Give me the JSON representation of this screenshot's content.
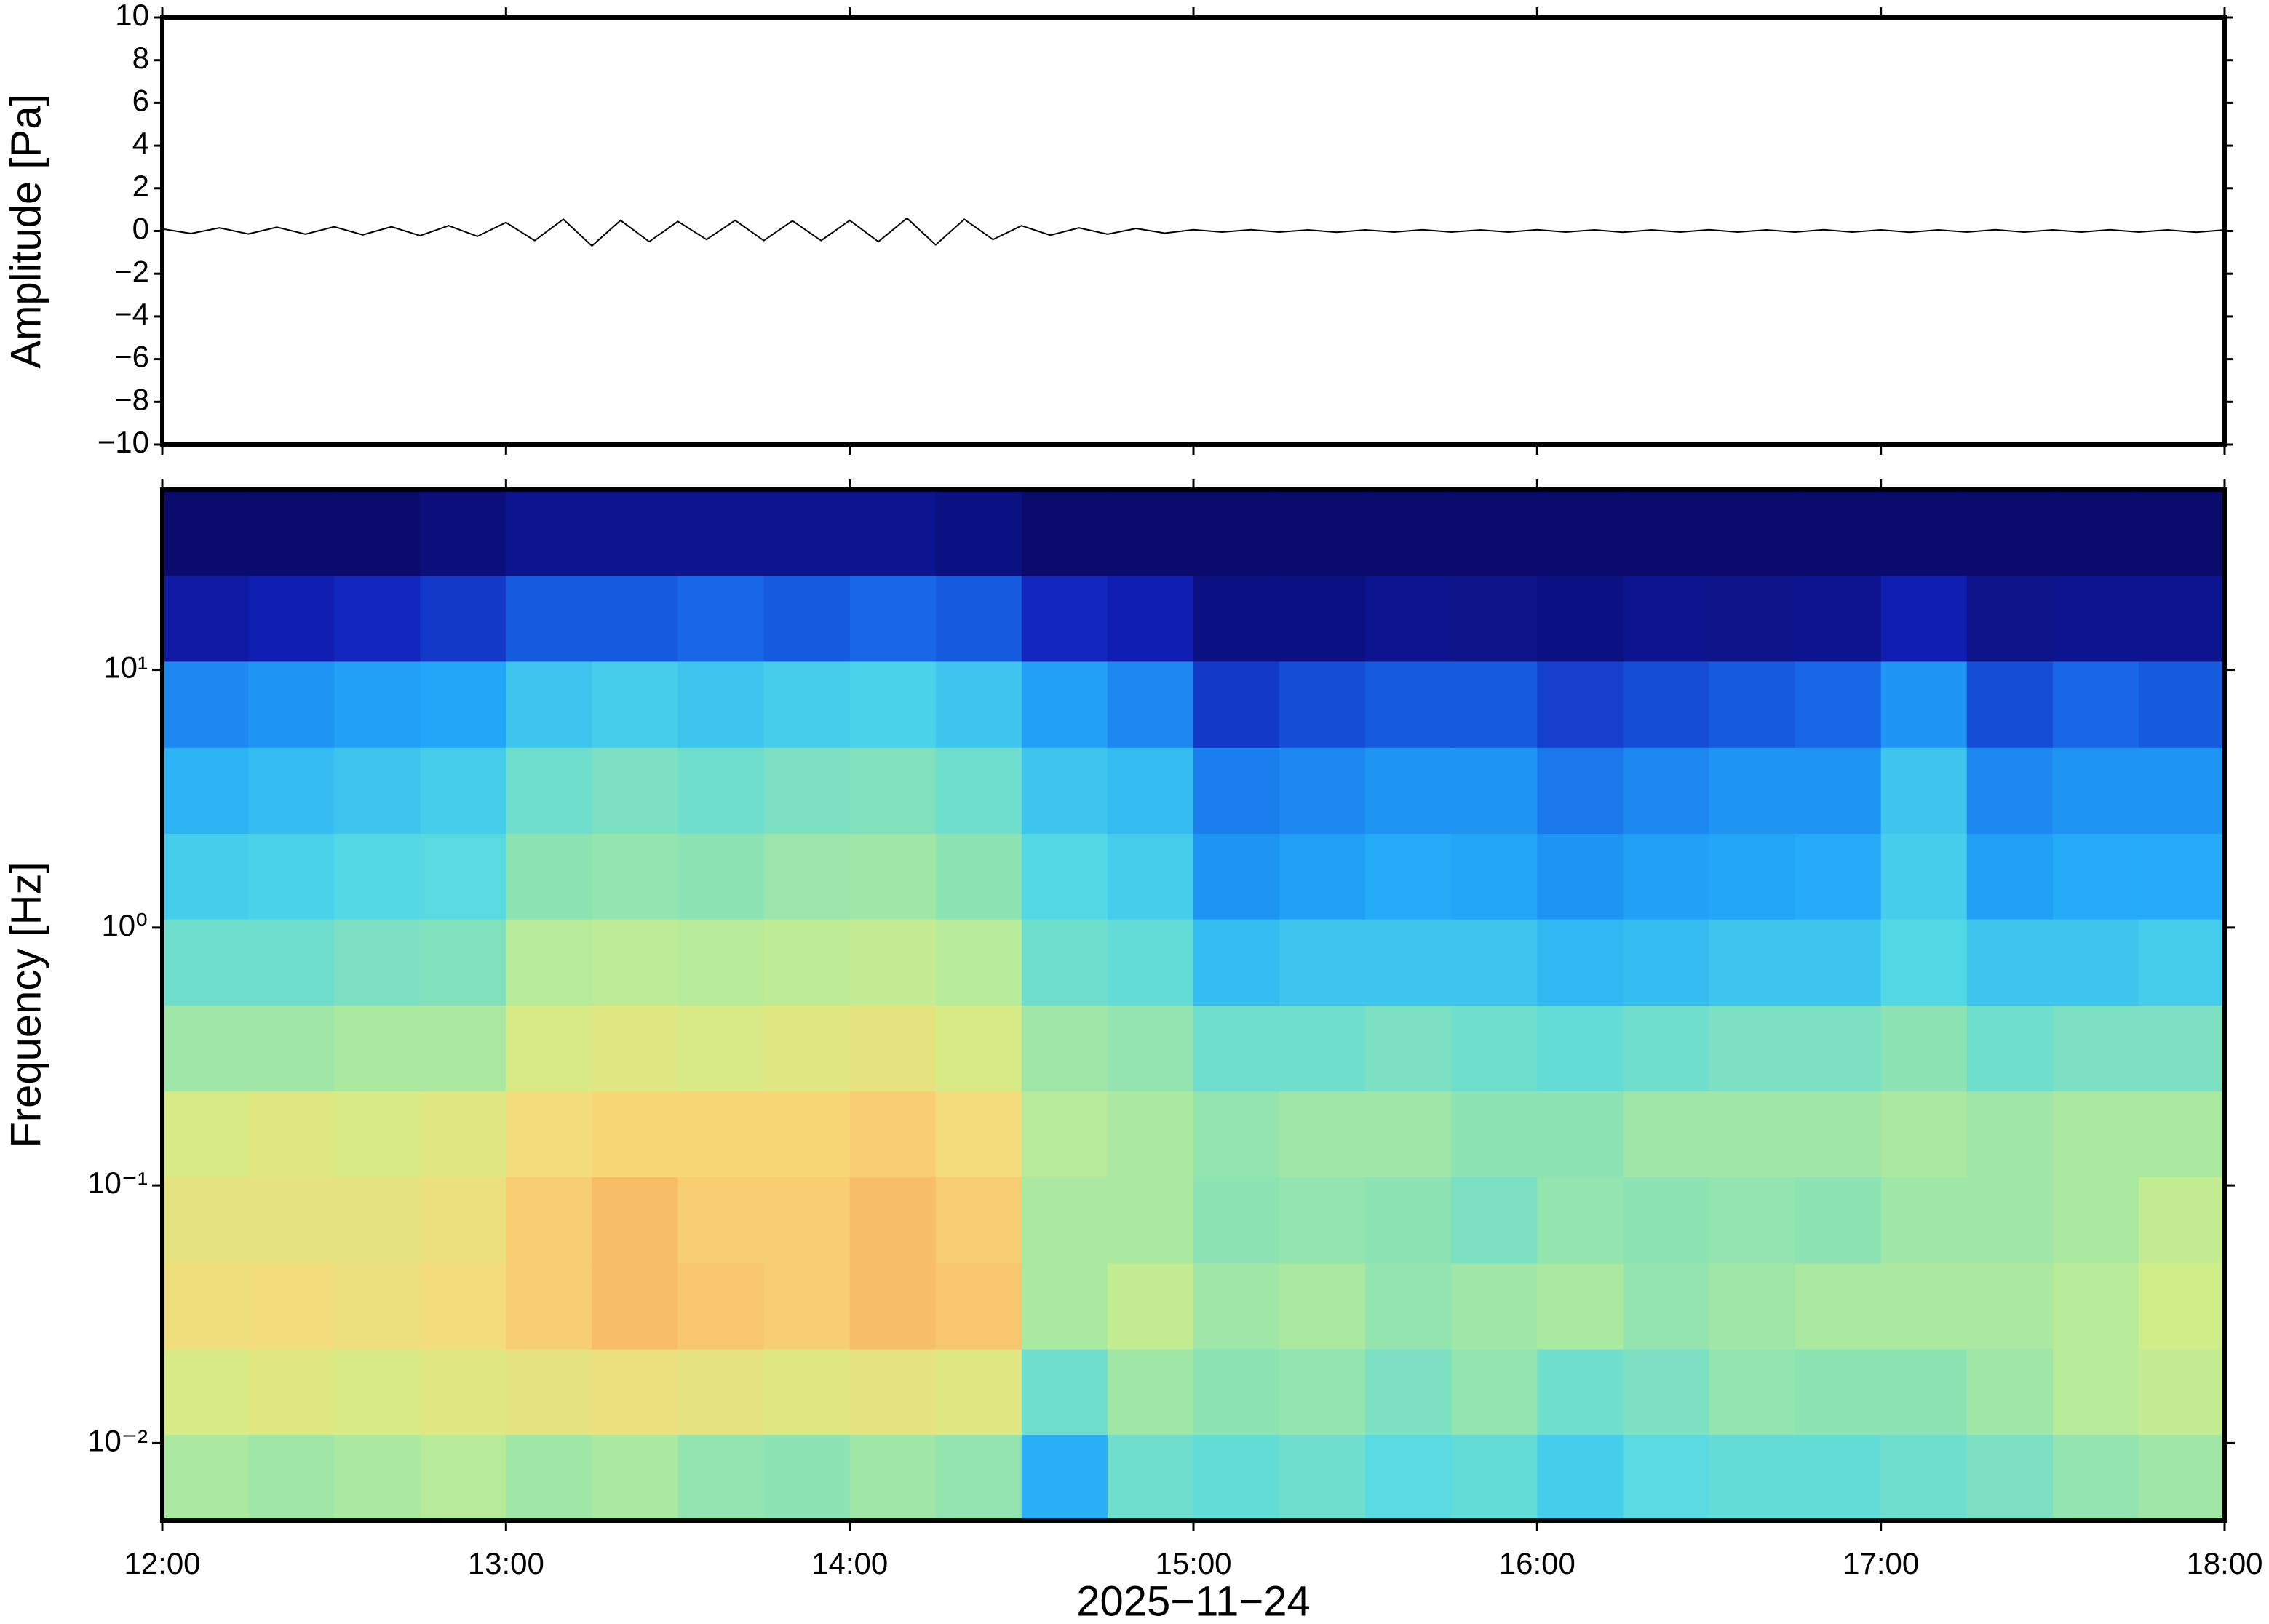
{
  "chart_data": [
    {
      "type": "line",
      "ylabel": "Amplitude [Pa]",
      "color": "#000000",
      "xlim": [
        720,
        1080
      ],
      "ylim": [
        -10,
        10
      ],
      "yticks": [
        {
          "value": -10,
          "label": "−10"
        },
        {
          "value": -8,
          "label": "−8"
        },
        {
          "value": -6,
          "label": "−6"
        },
        {
          "value": -4,
          "label": "−4"
        },
        {
          "value": -2,
          "label": "−2"
        },
        0,
        2,
        4,
        6,
        8,
        10
      ],
      "x": [
        720,
        725,
        730,
        735,
        740,
        745,
        750,
        755,
        760,
        765,
        770,
        775,
        780,
        785,
        790,
        795,
        800,
        805,
        810,
        815,
        820,
        825,
        830,
        835,
        840,
        845,
        850,
        855,
        860,
        865,
        870,
        875,
        880,
        885,
        890,
        895,
        900,
        905,
        910,
        915,
        920,
        925,
        930,
        935,
        940,
        945,
        950,
        955,
        960,
        965,
        970,
        975,
        980,
        985,
        990,
        995,
        1000,
        1005,
        1010,
        1015,
        1020,
        1025,
        1030,
        1035,
        1040,
        1045,
        1050,
        1055,
        1060,
        1065,
        1070,
        1075,
        1080
      ],
      "values": [
        0.1,
        -0.12,
        0.15,
        -0.14,
        0.18,
        -0.15,
        0.2,
        -0.18,
        0.2,
        -0.22,
        0.25,
        -0.25,
        0.4,
        -0.45,
        0.55,
        -0.7,
        0.5,
        -0.5,
        0.45,
        -0.4,
        0.5,
        -0.45,
        0.48,
        -0.45,
        0.5,
        -0.5,
        0.6,
        -0.65,
        0.55,
        -0.4,
        0.25,
        -0.2,
        0.15,
        -0.15,
        0.12,
        -0.1,
        0.06,
        -0.05,
        0.06,
        -0.05,
        0.05,
        -0.06,
        0.05,
        -0.05,
        0.06,
        -0.05,
        0.05,
        -0.05,
        0.06,
        -0.05,
        0.05,
        -0.06,
        0.05,
        -0.05,
        0.06,
        -0.05,
        0.05,
        -0.05,
        0.06,
        -0.05,
        0.05,
        -0.06,
        0.05,
        -0.05,
        0.06,
        -0.05,
        0.05,
        -0.05,
        0.06,
        -0.05,
        0.05,
        -0.06,
        0.05
      ]
    },
    {
      "type": "heatmap",
      "ylabel": "Frequency [Hz]",
      "xlabel": "2025−11−24",
      "log_y": true,
      "xlim": [
        720,
        1080
      ],
      "ylim": [
        0.005,
        50
      ],
      "xticks": [
        {
          "value": 720,
          "label": "12:00"
        },
        {
          "value": 780,
          "label": "13:00"
        },
        {
          "value": 840,
          "label": "14:00"
        },
        {
          "value": 900,
          "label": "15:00"
        },
        {
          "value": 960,
          "label": "16:00"
        },
        {
          "value": 1020,
          "label": "17:00"
        },
        {
          "value": 1080,
          "label": "18:00"
        }
      ],
      "yticks": [
        {
          "value": 0.01,
          "label": "10⁻²"
        },
        {
          "value": 0.1,
          "label": "10⁻¹"
        },
        {
          "value": 1,
          "label": "10⁰"
        },
        {
          "value": 10,
          "label": "10¹"
        }
      ],
      "x_bins": [
        720,
        735,
        750,
        765,
        780,
        795,
        810,
        825,
        840,
        855,
        870,
        885,
        900,
        915,
        930,
        945,
        960,
        975,
        990,
        1005,
        1020,
        1035,
        1050,
        1065,
        1080
      ],
      "y_bins": [
        0.005,
        0.0108,
        0.0232,
        0.05,
        0.108,
        0.232,
        0.5,
        1.08,
        2.32,
        5,
        10.8,
        23.2,
        50
      ],
      "zlim": [
        0,
        1
      ],
      "colormap": [
        "#0b0b6e",
        "#1020b8",
        "#1868e8",
        "#22a8f8",
        "#50d8e8",
        "#90e4b0",
        "#d4ee88",
        "#f8d878",
        "#f8a85a",
        "#f07038"
      ],
      "z": [
        [
          0.6,
          0.58,
          0.6,
          0.62,
          0.58,
          0.6,
          0.56,
          0.55,
          0.58,
          0.56,
          0.35,
          0.5,
          0.48,
          0.5,
          0.46,
          0.48,
          0.42,
          0.46,
          0.48,
          0.48,
          0.5,
          0.52,
          0.56,
          0.58
        ],
        [
          0.68,
          0.7,
          0.68,
          0.7,
          0.72,
          0.74,
          0.72,
          0.7,
          0.72,
          0.7,
          0.5,
          0.58,
          0.55,
          0.56,
          0.52,
          0.56,
          0.5,
          0.52,
          0.56,
          0.55,
          0.55,
          0.58,
          0.62,
          0.64
        ],
        [
          0.75,
          0.76,
          0.74,
          0.76,
          0.8,
          0.84,
          0.82,
          0.8,
          0.84,
          0.82,
          0.6,
          0.64,
          0.58,
          0.6,
          0.56,
          0.58,
          0.6,
          0.56,
          0.58,
          0.6,
          0.6,
          0.6,
          0.62,
          0.66
        ],
        [
          0.72,
          0.72,
          0.72,
          0.74,
          0.8,
          0.84,
          0.8,
          0.8,
          0.84,
          0.8,
          0.6,
          0.6,
          0.55,
          0.56,
          0.55,
          0.52,
          0.56,
          0.55,
          0.56,
          0.55,
          0.58,
          0.58,
          0.6,
          0.64
        ],
        [
          0.68,
          0.7,
          0.68,
          0.7,
          0.76,
          0.78,
          0.78,
          0.78,
          0.8,
          0.76,
          0.62,
          0.6,
          0.56,
          0.58,
          0.58,
          0.55,
          0.55,
          0.58,
          0.58,
          0.58,
          0.6,
          0.58,
          0.6,
          0.6
        ],
        [
          0.58,
          0.58,
          0.6,
          0.6,
          0.68,
          0.7,
          0.68,
          0.7,
          0.72,
          0.68,
          0.58,
          0.56,
          0.5,
          0.5,
          0.52,
          0.5,
          0.48,
          0.5,
          0.52,
          0.52,
          0.55,
          0.5,
          0.52,
          0.52
        ],
        [
          0.5,
          0.5,
          0.52,
          0.53,
          0.62,
          0.63,
          0.62,
          0.63,
          0.64,
          0.62,
          0.5,
          0.48,
          0.38,
          0.4,
          0.4,
          0.4,
          0.37,
          0.38,
          0.4,
          0.4,
          0.45,
          0.4,
          0.4,
          0.42
        ],
        [
          0.42,
          0.43,
          0.45,
          0.46,
          0.55,
          0.56,
          0.55,
          0.57,
          0.58,
          0.55,
          0.45,
          0.42,
          0.3,
          0.32,
          0.34,
          0.33,
          0.3,
          0.32,
          0.33,
          0.34,
          0.42,
          0.32,
          0.34,
          0.34
        ],
        [
          0.36,
          0.38,
          0.4,
          0.42,
          0.5,
          0.52,
          0.5,
          0.52,
          0.53,
          0.5,
          0.4,
          0.38,
          0.26,
          0.28,
          0.3,
          0.3,
          0.25,
          0.28,
          0.3,
          0.3,
          0.4,
          0.28,
          0.3,
          0.3
        ],
        [
          0.28,
          0.3,
          0.32,
          0.33,
          0.4,
          0.42,
          0.4,
          0.42,
          0.43,
          0.4,
          0.32,
          0.28,
          0.15,
          0.18,
          0.2,
          0.2,
          0.16,
          0.18,
          0.2,
          0.22,
          0.3,
          0.18,
          0.22,
          0.2
        ],
        [
          0.08,
          0.1,
          0.12,
          0.15,
          0.2,
          0.2,
          0.22,
          0.2,
          0.22,
          0.2,
          0.12,
          0.1,
          0.03,
          0.03,
          0.05,
          0.04,
          0.03,
          0.05,
          0.04,
          0.05,
          0.1,
          0.04,
          0.05,
          0.05
        ],
        [
          0,
          0,
          0,
          0.02,
          0.05,
          0.05,
          0.05,
          0.05,
          0.05,
          0.03,
          0,
          0,
          0,
          0,
          0,
          0,
          0,
          0,
          0,
          0,
          0,
          0,
          0,
          0
        ]
      ]
    }
  ]
}
